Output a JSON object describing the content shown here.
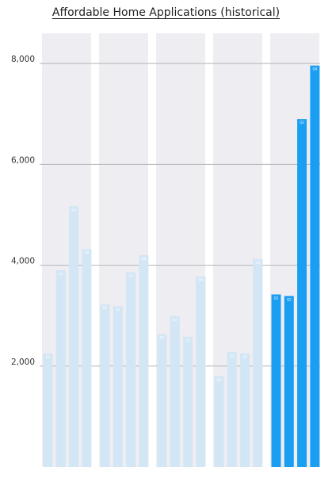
{
  "chart_data": {
    "type": "bar",
    "title": "Affordable Home Applications (historical)",
    "xlabel": "",
    "ylabel": "",
    "ylim": [
      0,
      8600
    ],
    "y_ticks": [
      {
        "value": 2000,
        "label": "2,000"
      },
      {
        "value": 4000,
        "label": "4,000"
      },
      {
        "value": 6000,
        "label": "6,000"
      },
      {
        "value": 8000,
        "label": "8,000"
      }
    ],
    "grid": "horizontal",
    "groups": [
      {
        "highlight": false,
        "bars": [
          {
            "label": "Q1",
            "value": 2250
          },
          {
            "label": "Q2",
            "value": 3900
          },
          {
            "label": "Q3",
            "value": 5170
          },
          {
            "label": "Q4",
            "value": 4320
          }
        ]
      },
      {
        "highlight": false,
        "bars": [
          {
            "label": "Q1",
            "value": 3220
          },
          {
            "label": "Q2",
            "value": 3190
          },
          {
            "label": "Q3",
            "value": 3860
          },
          {
            "label": "Q4",
            "value": 4200
          }
        ]
      },
      {
        "highlight": false,
        "bars": [
          {
            "label": "Q1",
            "value": 2630
          },
          {
            "label": "Q2",
            "value": 2990
          },
          {
            "label": "Q3",
            "value": 2580
          },
          {
            "label": "Q4",
            "value": 3780
          }
        ]
      },
      {
        "highlight": false,
        "bars": [
          {
            "label": "Q1",
            "value": 1800
          },
          {
            "label": "Q2",
            "value": 2280
          },
          {
            "label": "Q3",
            "value": 2250
          },
          {
            "label": "Q4",
            "value": 4120
          }
        ]
      },
      {
        "highlight": true,
        "bars": [
          {
            "label": "Q1",
            "value": 3420
          },
          {
            "label": "Q2",
            "value": 3390
          },
          {
            "label": "Q3",
            "value": 6900
          },
          {
            "label": "Q4",
            "value": 7960
          }
        ]
      }
    ],
    "colors": {
      "background_band": "#eeedf2",
      "bar_muted": "#d3e6f5",
      "bar_highlight": "#1a9ef2",
      "gridline": "#b5b5b5",
      "bar_label": "#ffffff"
    }
  }
}
